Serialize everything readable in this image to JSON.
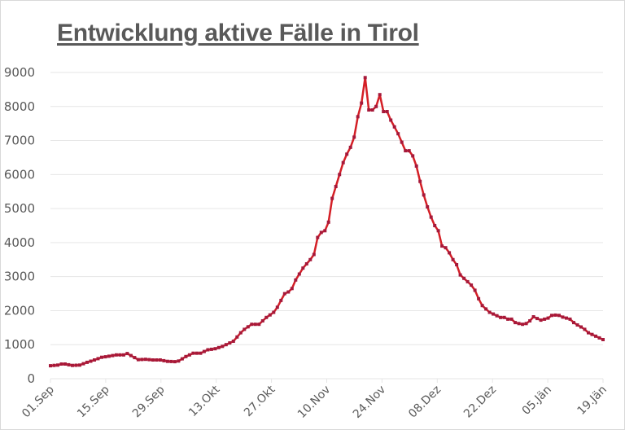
{
  "title": "Entwicklung aktive Fälle in Tirol",
  "colors": {
    "line": "#d41f26",
    "marker": "#a6193a",
    "grid": "#e6e6e6",
    "axis_text": "#595959",
    "title": "#595959"
  },
  "chart_data": {
    "type": "line",
    "title": "Entwicklung aktive Fälle in Tirol",
    "xlabel": "",
    "ylabel": "",
    "ylim": [
      0,
      9000
    ],
    "yticks": [
      0,
      1000,
      2000,
      3000,
      4000,
      5000,
      6000,
      7000,
      8000,
      9000
    ],
    "xticks": [
      "01.Sep",
      "15.Sep",
      "29.Sep",
      "13.Okt",
      "27.Okt",
      "10.Nov",
      "24.Nov",
      "08.Dez",
      "22.Dez",
      "05.Jän",
      "19.Jän"
    ],
    "grid": true,
    "legend": "none",
    "x_start": "01.Sep",
    "x_end": "19.Jän",
    "series": [
      {
        "name": "Aktive Fälle",
        "anchors_day_value": [
          [
            0,
            380
          ],
          [
            2,
            400
          ],
          [
            3,
            430
          ],
          [
            4,
            430
          ],
          [
            6,
            390
          ],
          [
            8,
            400
          ],
          [
            10,
            480
          ],
          [
            12,
            550
          ],
          [
            14,
            630
          ],
          [
            16,
            660
          ],
          [
            18,
            700
          ],
          [
            20,
            700
          ],
          [
            21,
            740
          ],
          [
            23,
            620
          ],
          [
            24,
            560
          ],
          [
            26,
            570
          ],
          [
            28,
            550
          ],
          [
            30,
            550
          ],
          [
            32,
            510
          ],
          [
            34,
            500
          ],
          [
            35,
            520
          ],
          [
            37,
            650
          ],
          [
            39,
            750
          ],
          [
            41,
            750
          ],
          [
            43,
            850
          ],
          [
            45,
            880
          ],
          [
            47,
            950
          ],
          [
            48,
            1000
          ],
          [
            50,
            1100
          ],
          [
            52,
            1350
          ],
          [
            53,
            1450
          ],
          [
            55,
            1600
          ],
          [
            57,
            1600
          ],
          [
            59,
            1800
          ],
          [
            61,
            1950
          ],
          [
            62,
            2100
          ],
          [
            64,
            2500
          ],
          [
            65,
            2550
          ],
          [
            66,
            2650
          ],
          [
            67,
            2900
          ],
          [
            69,
            3250
          ],
          [
            71,
            3500
          ],
          [
            72,
            3650
          ],
          [
            73,
            4150
          ],
          [
            74,
            4300
          ],
          [
            75,
            4350
          ],
          [
            76,
            4600
          ],
          [
            77,
            5300
          ],
          [
            78,
            5650
          ],
          [
            79,
            6000
          ],
          [
            80,
            6350
          ],
          [
            81,
            6600
          ],
          [
            82,
            6800
          ],
          [
            83,
            7100
          ],
          [
            84,
            7700
          ],
          [
            85,
            8100
          ],
          [
            86,
            8850
          ],
          [
            87,
            7900
          ],
          [
            88,
            7900
          ],
          [
            89,
            8000
          ],
          [
            90,
            8350
          ],
          [
            91,
            7850
          ],
          [
            92,
            7850
          ],
          [
            93,
            7600
          ],
          [
            94,
            7400
          ],
          [
            95,
            7200
          ],
          [
            96,
            6950
          ],
          [
            97,
            6700
          ],
          [
            98,
            6700
          ],
          [
            99,
            6550
          ],
          [
            100,
            6250
          ],
          [
            101,
            5800
          ],
          [
            102,
            5400
          ],
          [
            103,
            5050
          ],
          [
            104,
            4750
          ],
          [
            105,
            4500
          ],
          [
            106,
            4350
          ],
          [
            107,
            3900
          ],
          [
            108,
            3850
          ],
          [
            109,
            3700
          ],
          [
            110,
            3500
          ],
          [
            111,
            3350
          ],
          [
            112,
            3050
          ],
          [
            113,
            2950
          ],
          [
            114,
            2850
          ],
          [
            115,
            2750
          ],
          [
            116,
            2600
          ],
          [
            117,
            2350
          ],
          [
            118,
            2150
          ],
          [
            119,
            2050
          ],
          [
            120,
            1950
          ],
          [
            121,
            1900
          ],
          [
            122,
            1850
          ],
          [
            123,
            1800
          ],
          [
            124,
            1800
          ],
          [
            125,
            1750
          ],
          [
            126,
            1750
          ],
          [
            127,
            1650
          ],
          [
            128,
            1620
          ],
          [
            129,
            1600
          ],
          [
            130,
            1620
          ],
          [
            131,
            1700
          ],
          [
            132,
            1820
          ],
          [
            133,
            1770
          ],
          [
            134,
            1720
          ],
          [
            135,
            1750
          ],
          [
            136,
            1780
          ],
          [
            137,
            1860
          ],
          [
            138,
            1870
          ],
          [
            139,
            1860
          ],
          [
            140,
            1810
          ],
          [
            141,
            1780
          ],
          [
            142,
            1750
          ],
          [
            143,
            1650
          ],
          [
            144,
            1580
          ],
          [
            145,
            1520
          ],
          [
            146,
            1450
          ],
          [
            147,
            1350
          ],
          [
            148,
            1300
          ],
          [
            149,
            1250
          ],
          [
            150,
            1200
          ],
          [
            151,
            1150
          ]
        ]
      }
    ]
  }
}
